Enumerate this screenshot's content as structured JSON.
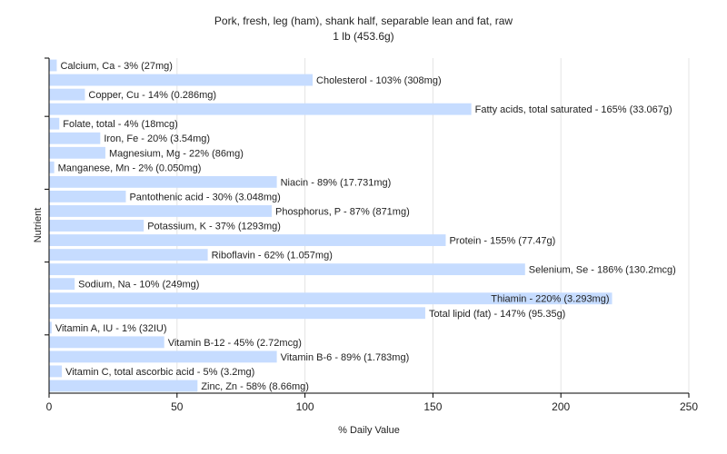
{
  "chart_data": {
    "type": "bar",
    "orientation": "horizontal",
    "title": "Pork, fresh, leg (ham), shank half, separable lean and fat, raw",
    "subtitle": "1 lb (453.6g)",
    "xlabel": "% Daily Value",
    "ylabel": "Nutrient",
    "xlim": [
      0,
      250
    ],
    "xticks": [
      "0",
      "50",
      "100",
      "150",
      "200",
      "250"
    ],
    "grid": true,
    "bar_color": "#c6dcff",
    "bars": [
      {
        "label": "Calcium, Ca - 3% (27mg)",
        "value": 3
      },
      {
        "label": "Cholesterol - 103% (308mg)",
        "value": 103
      },
      {
        "label": "Copper, Cu - 14% (0.286mg)",
        "value": 14
      },
      {
        "label": "Fatty acids, total saturated - 165% (33.067g)",
        "value": 165
      },
      {
        "label": "Folate, total - 4% (18mcg)",
        "value": 4
      },
      {
        "label": "Iron, Fe - 20% (3.54mg)",
        "value": 20
      },
      {
        "label": "Magnesium, Mg - 22% (86mg)",
        "value": 22
      },
      {
        "label": "Manganese, Mn - 2% (0.050mg)",
        "value": 2
      },
      {
        "label": "Niacin - 89% (17.731mg)",
        "value": 89
      },
      {
        "label": "Pantothenic acid - 30% (3.048mg)",
        "value": 30
      },
      {
        "label": "Phosphorus, P - 87% (871mg)",
        "value": 87
      },
      {
        "label": "Potassium, K - 37% (1293mg)",
        "value": 37
      },
      {
        "label": "Protein - 155% (77.47g)",
        "value": 155
      },
      {
        "label": "Riboflavin - 62% (1.057mg)",
        "value": 62
      },
      {
        "label": "Selenium, Se - 186% (130.2mcg)",
        "value": 186
      },
      {
        "label": "Sodium, Na - 10% (249mg)",
        "value": 10
      },
      {
        "label": "Thiamin - 220% (3.293mg)",
        "value": 220
      },
      {
        "label": "Total lipid (fat) - 147% (95.35g)",
        "value": 147
      },
      {
        "label": "Vitamin A, IU - 1% (32IU)",
        "value": 1
      },
      {
        "label": "Vitamin B-12 - 45% (2.72mcg)",
        "value": 45
      },
      {
        "label": "Vitamin B-6 - 89% (1.783mg)",
        "value": 89
      },
      {
        "label": "Vitamin C, total ascorbic acid - 5% (3.2mg)",
        "value": 5
      },
      {
        "label": "Zinc, Zn - 58% (8.66mg)",
        "value": 58
      }
    ]
  }
}
